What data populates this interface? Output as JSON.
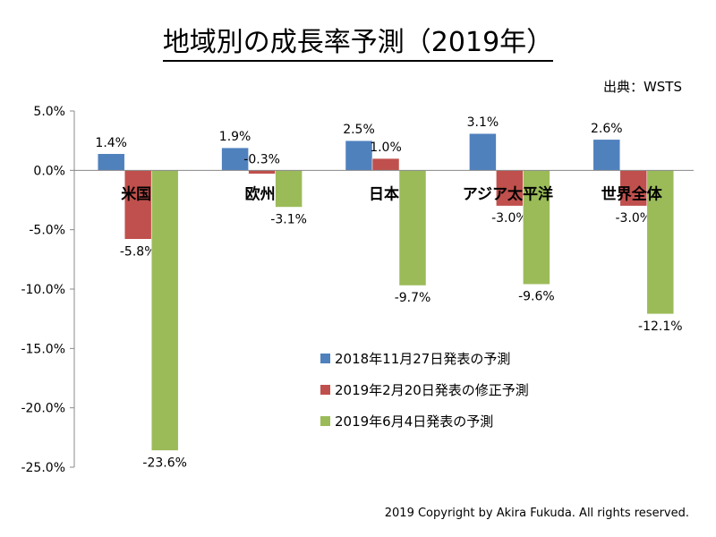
{
  "title": "地域別の成長率予測（2019年）",
  "source": "出典：WSTS",
  "copyright": "2019 Copyright by Akira Fukuda. All rights reserved.",
  "chart_data": {
    "type": "bar",
    "title": "地域別の成長率予測（2019年）",
    "categories": [
      "米国",
      "欧州",
      "日本",
      "アジア太平洋",
      "世界全体"
    ],
    "series": [
      {
        "name": "2018年11月27日発表の予測",
        "color": "#4F81BD",
        "values": [
          1.4,
          1.9,
          2.5,
          3.1,
          2.6
        ]
      },
      {
        "name": "2019年2月20日発表の修正予測",
        "color": "#C0504D",
        "values": [
          -5.8,
          -0.3,
          1.0,
          -3.0,
          -3.0
        ]
      },
      {
        "name": "2019年6月4日発表の予測",
        "color": "#9BBB59",
        "values": [
          -23.6,
          -3.1,
          -9.7,
          -9.6,
          -12.1
        ]
      }
    ],
    "yticks": [
      "5.0%",
      "0.0%",
      "-5.0%",
      "-10.0%",
      "-15.0%",
      "-20.0%",
      "-25.0%"
    ],
    "ylim": [
      -25,
      5
    ],
    "grid": false,
    "legend": "center-right"
  }
}
